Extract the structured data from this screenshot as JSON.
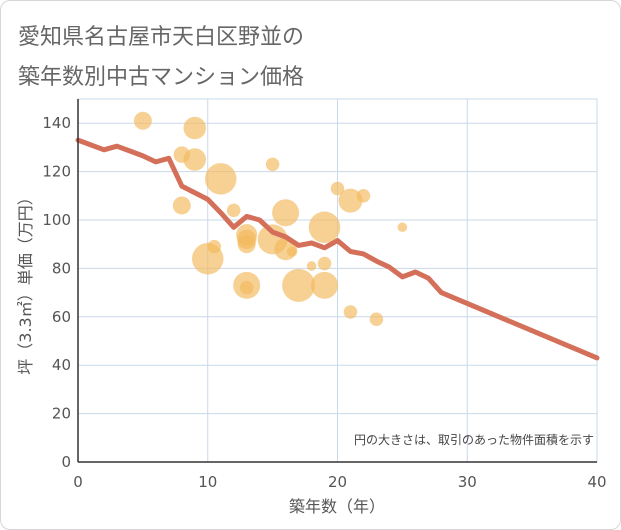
{
  "title_lines": [
    "愛知県名古屋市天白区野並の",
    "築年数別中古マンション価格"
  ],
  "chart_data": {
    "type": "scatter",
    "title": "愛知県名古屋市天白区野並の築年数別中古マンション価格",
    "xlabel": "築年数（年）",
    "ylabel": "坪（3.3㎡）単価（万円）",
    "xlim": [
      0,
      40
    ],
    "ylim": [
      0,
      150
    ],
    "x_ticks": [
      0,
      10,
      20,
      30,
      40
    ],
    "y_ticks": [
      0,
      20,
      40,
      60,
      80,
      100,
      120,
      140
    ],
    "grid": true,
    "note": "円の大きさは、取引のあった物件面積を示す",
    "colors": {
      "bubble": "#f2b95a",
      "trend": "#d4705a",
      "grid": "#c9d9ea",
      "axis": "#333333"
    },
    "bubbles": [
      {
        "x": 5,
        "y": 141,
        "size": 0.4
      },
      {
        "x": 8,
        "y": 127,
        "size": 0.35
      },
      {
        "x": 8,
        "y": 106,
        "size": 0.4
      },
      {
        "x": 9,
        "y": 138,
        "size": 0.55
      },
      {
        "x": 9,
        "y": 125,
        "size": 0.55
      },
      {
        "x": 10,
        "y": 84,
        "size": 0.85
      },
      {
        "x": 10.5,
        "y": 89,
        "size": 0.25
      },
      {
        "x": 11,
        "y": 117,
        "size": 0.85
      },
      {
        "x": 12,
        "y": 104,
        "size": 0.25
      },
      {
        "x": 13,
        "y": 94,
        "size": 0.5
      },
      {
        "x": 13,
        "y": 92,
        "size": 0.45
      },
      {
        "x": 13,
        "y": 90,
        "size": 0.4
      },
      {
        "x": 13,
        "y": 73,
        "size": 0.7
      },
      {
        "x": 13,
        "y": 72,
        "size": 0.25
      },
      {
        "x": 15,
        "y": 123,
        "size": 0.25
      },
      {
        "x": 15,
        "y": 92,
        "size": 0.8
      },
      {
        "x": 16,
        "y": 103,
        "size": 0.7
      },
      {
        "x": 16,
        "y": 88,
        "size": 0.55
      },
      {
        "x": 16.5,
        "y": 87,
        "size": 0.15
      },
      {
        "x": 17,
        "y": 73,
        "size": 0.9
      },
      {
        "x": 18,
        "y": 81,
        "size": 0.12
      },
      {
        "x": 19,
        "y": 97,
        "size": 0.85
      },
      {
        "x": 19,
        "y": 82,
        "size": 0.25
      },
      {
        "x": 19,
        "y": 73,
        "size": 0.7
      },
      {
        "x": 20,
        "y": 113,
        "size": 0.25
      },
      {
        "x": 21,
        "y": 108,
        "size": 0.6
      },
      {
        "x": 21,
        "y": 62,
        "size": 0.25
      },
      {
        "x": 22,
        "y": 110,
        "size": 0.25
      },
      {
        "x": 23,
        "y": 59,
        "size": 0.25
      },
      {
        "x": 25,
        "y": 97,
        "size": 0.12
      }
    ],
    "trend_line": {
      "x": [
        0,
        2,
        3,
        4,
        5,
        6,
        7,
        8,
        10,
        11,
        12,
        13,
        14,
        15,
        16,
        17,
        18,
        19,
        20,
        21,
        22,
        23,
        24,
        25,
        26,
        27,
        28,
        40
      ],
      "y": [
        133,
        129,
        130.5,
        128.5,
        126.5,
        124,
        125.5,
        114,
        108.5,
        103,
        97,
        101.5,
        100,
        95,
        93,
        89.5,
        90.5,
        88.5,
        91.5,
        87,
        86,
        83,
        80.5,
        76.5,
        78.5,
        76,
        70,
        43
      ]
    }
  }
}
